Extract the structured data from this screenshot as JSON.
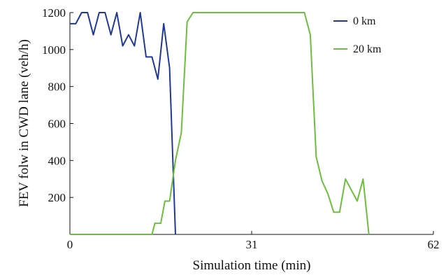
{
  "chart_data": {
    "type": "line",
    "title": "",
    "xlabel": "Simulation time (min)",
    "ylabel": "FEV folw in CWD lane (veh/h)",
    "xlim": [
      0,
      62
    ],
    "ylim": [
      0,
      1200
    ],
    "xticks": [
      0,
      31,
      62
    ],
    "yticks": [
      200,
      400,
      600,
      800,
      1000,
      1200
    ],
    "xtick_labels": [
      "0",
      "31",
      "62"
    ],
    "ytick_labels": [
      "200",
      "400",
      "600",
      "800",
      "1000",
      "1200"
    ],
    "grid": false,
    "legend_position": "top-right",
    "series": [
      {
        "name": "0 km",
        "color": "#1f3a93",
        "x": [
          0,
          1,
          2,
          3,
          4,
          5,
          6,
          7,
          8,
          9,
          10,
          11,
          12,
          13,
          14,
          15,
          16,
          17,
          18
        ],
        "y": [
          1140,
          1140,
          1200,
          1200,
          1080,
          1200,
          1200,
          1080,
          1200,
          1020,
          1080,
          1020,
          1200,
          960,
          960,
          840,
          1140,
          900,
          0
        ]
      },
      {
        "name": "20 km",
        "color": "#6cbf3c",
        "x": [
          0,
          14,
          14.5,
          15.5,
          16.2,
          17,
          18,
          19,
          20,
          21,
          40,
          41,
          42,
          43,
          44,
          45,
          46,
          47,
          48,
          49,
          50,
          51
        ],
        "y": [
          0,
          0,
          60,
          60,
          180,
          180,
          400,
          550,
          1150,
          1200,
          1200,
          1080,
          420,
          290,
          220,
          120,
          120,
          300,
          240,
          180,
          300,
          0
        ]
      }
    ]
  }
}
